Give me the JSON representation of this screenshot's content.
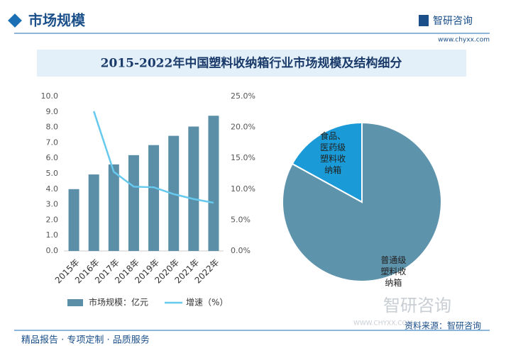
{
  "header": {
    "section": "市场规模",
    "brand": "智研咨询",
    "site": "www.chyxx.com"
  },
  "chart_data": [
    {
      "type": "bar",
      "title": "2015-2022年中国塑料收纳箱行业市场规模及结构细分",
      "categories": [
        "2015年",
        "2016年",
        "2017年",
        "2018年",
        "2019年",
        "2020年",
        "2021年",
        "2022年"
      ],
      "series": [
        {
          "name": "市场规模：亿元",
          "type": "bar",
          "color": "#5b8fa8",
          "values": [
            4.0,
            4.95,
            5.6,
            6.2,
            6.85,
            7.45,
            8.05,
            8.75
          ]
        },
        {
          "name": "增速（%）",
          "type": "line",
          "axis": "y2",
          "color": "#66c9ee",
          "values": [
            null,
            22.6,
            12.8,
            10.4,
            10.3,
            9.2,
            8.4,
            7.8
          ]
        }
      ],
      "ylim": [
        0,
        10
      ],
      "yticks": [
        {
          "value": 0,
          "label": "0.0"
        },
        {
          "value": 1,
          "label": "1.0"
        },
        {
          "value": 2,
          "label": "2.0"
        },
        {
          "value": 3,
          "label": "3.0"
        },
        {
          "value": 4,
          "label": "4.0"
        },
        {
          "value": 5,
          "label": "5.0"
        },
        {
          "value": 6,
          "label": "6.0"
        },
        {
          "value": 7,
          "label": "7.0"
        },
        {
          "value": 8,
          "label": "8.0"
        },
        {
          "value": 9,
          "label": "9.0"
        },
        {
          "value": 10,
          "label": "10.0"
        }
      ],
      "y2lim": [
        0,
        25
      ],
      "y2ticks": [
        {
          "value": 0,
          "label": "0.0%"
        },
        {
          "value": 5,
          "label": "5.0%"
        },
        {
          "value": 10,
          "label": "10.0%"
        },
        {
          "value": 15,
          "label": "15.0%"
        },
        {
          "value": 20,
          "label": "20.0%"
        },
        {
          "value": 25,
          "label": "25.0%"
        }
      ],
      "legend": "bottom"
    },
    {
      "type": "pie",
      "categories": [
        "普通级塑料收纳箱",
        "食品、医药级塑料收纳箱"
      ],
      "values": [
        83,
        17
      ],
      "colors": [
        "#5e93ac",
        "#1a9bd7"
      ]
    }
  ],
  "footer": {
    "slogan": "精品报告 · 专项定制 · 品质服务",
    "source": "资料来源：智研咨询",
    "watermark": "智研咨询",
    "watermark_site": "WWW.CHYXX.COM"
  }
}
